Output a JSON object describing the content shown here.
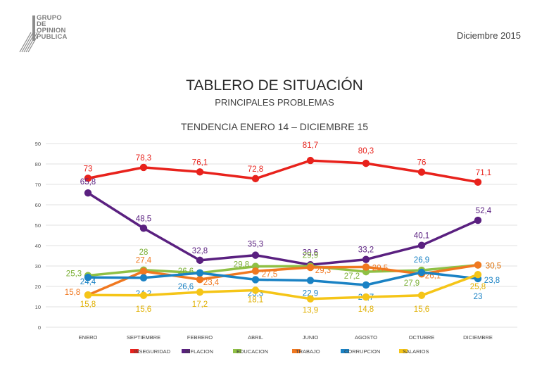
{
  "header": {
    "logo_lines": [
      "GRUPO",
      "DE",
      "OPINION",
      "PUBLICA"
    ],
    "date": "Diciembre 2015",
    "title": "TABLERO DE SITUACIÓN",
    "subtitle": "PRINCIPALES PROBLEMAS"
  },
  "chart_data": {
    "type": "line",
    "title": "TENDENCIA ENERO 14 – DICIEMBRE 15",
    "xlabel": "",
    "ylabel": "",
    "ylim": [
      0,
      90
    ],
    "yticks": [
      "0",
      "10",
      "20",
      "30",
      "40",
      "50",
      "60",
      "70",
      "80",
      "90"
    ],
    "legend_position": "bottom",
    "categories": [
      "ENERO",
      "SEPTIEMBRE",
      "FEBRERO",
      "ABRIL",
      "JUNIO",
      "AGOSTO",
      "OCTUBRE",
      "DICIEMBRE"
    ],
    "series": [
      {
        "name": "INSEGURIDAD",
        "color": "#e8221c",
        "values": [
          73,
          78.3,
          76.1,
          72.8,
          81.7,
          80.3,
          76,
          71.1
        ],
        "labels": [
          "73",
          "78,3",
          "76,1",
          "72,8",
          "81,7",
          "80,3",
          "76",
          "71,1"
        ]
      },
      {
        "name": "INFLACION",
        "color": "#5a2080",
        "values": [
          65.8,
          48.5,
          32.8,
          35.3,
          30.6,
          33.2,
          40.1,
          52.4
        ],
        "labels": [
          "65,8",
          "48,5",
          "32,8",
          "35,3",
          "30,6",
          "33,2",
          "40,1",
          "52,4"
        ]
      },
      {
        "name": "EDUCACION",
        "color": "#8fc045",
        "values": [
          25.3,
          28,
          26.6,
          29.8,
          29.9,
          27.2,
          27.9,
          30.5
        ],
        "labels": [
          "25,3",
          "28",
          "26,6",
          "29,8",
          "29,9",
          "27,2",
          "27,9",
          "30,5"
        ]
      },
      {
        "name": "TRABAJO",
        "color": "#f07820",
        "values": [
          15.8,
          27.4,
          23.4,
          27.5,
          29.3,
          29.5,
          26.1,
          30.5
        ],
        "labels": [
          "15,8",
          "27,4",
          "23,4",
          "27,5",
          "29,3",
          "29,5",
          "26,1",
          "30,5"
        ]
      },
      {
        "name": "CORRUPCION",
        "color": "#1a82c4",
        "values": [
          24.4,
          24.2,
          26.6,
          23.3,
          22.9,
          20.7,
          26.9,
          23.8
        ],
        "labels": [
          "24,4",
          "24,2",
          "26,6",
          "23,3",
          "22,9",
          "20,7",
          "26,9",
          "23,8"
        ]
      },
      {
        "name": "SALARIOS",
        "color": "#f5c518",
        "values": [
          15.8,
          15.6,
          17.2,
          18.1,
          13.9,
          14.8,
          15.6,
          25.8
        ],
        "labels": [
          "15,8",
          "15,6",
          "17,2",
          "18,1",
          "13,9",
          "14,8",
          "15,6",
          "25,8"
        ]
      }
    ],
    "extra_labels": [
      "23"
    ]
  }
}
